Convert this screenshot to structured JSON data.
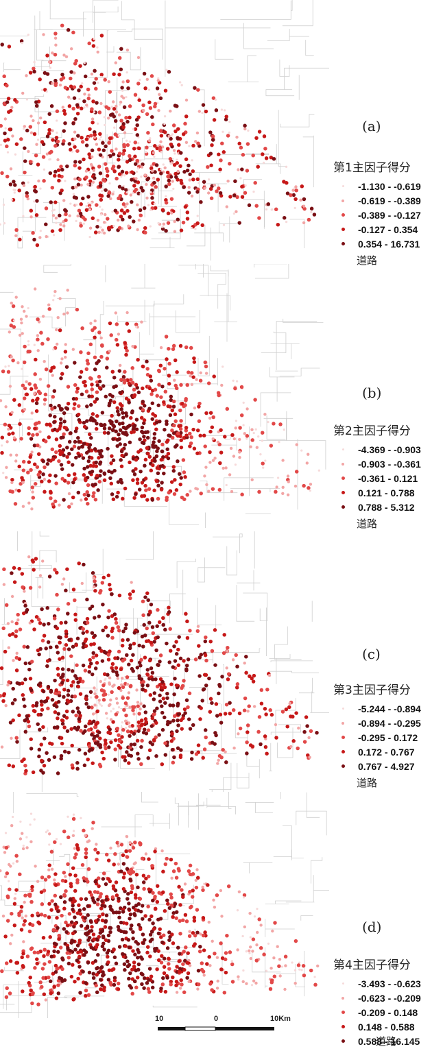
{
  "panels": [
    {
      "id": "a",
      "label": "(a)",
      "legend_title": "第1主因子得分",
      "classes": [
        "-1.130 - -0.619",
        "-0.619 - -0.389",
        "-0.389 - -0.127",
        "-0.127 - 0.354",
        "0.354 - 16.731"
      ],
      "road_label": "道路",
      "emphasis": "north-east"
    },
    {
      "id": "b",
      "label": "(b)",
      "legend_title": "第2主因子得分",
      "classes": [
        "-4.369 - -0.903",
        "-0.903 - -0.361",
        "-0.361 - 0.121",
        "0.121 - 0.788",
        "0.788 - 5.312"
      ],
      "road_label": "道路",
      "emphasis": "center"
    },
    {
      "id": "c",
      "label": "(c)",
      "legend_title": "第3主因子得分",
      "classes": [
        "-5.244 - -0.894",
        "-0.894 - -0.295",
        "-0.295 - 0.172",
        "0.172 - 0.767",
        "0.767 - 4.927"
      ],
      "road_label": "道路",
      "emphasis": "ring"
    },
    {
      "id": "d",
      "label": "(d)",
      "legend_title": "第4主因子得分",
      "classes": [
        "-3.493 - -0.623",
        "-0.623 - -0.209",
        "-0.209 - 0.148",
        "0.148 - 0.588",
        "0.588 - 16.145"
      ],
      "road_label": "道路",
      "emphasis": "center-west"
    }
  ],
  "class_colors": [
    "#f6dada",
    "#f2a5a5",
    "#e24848",
    "#c61818",
    "#7a0f14"
  ],
  "road_color": "#cfcfcf",
  "scalebar": {
    "left": "10",
    "center": "0",
    "right": "10Km"
  }
}
